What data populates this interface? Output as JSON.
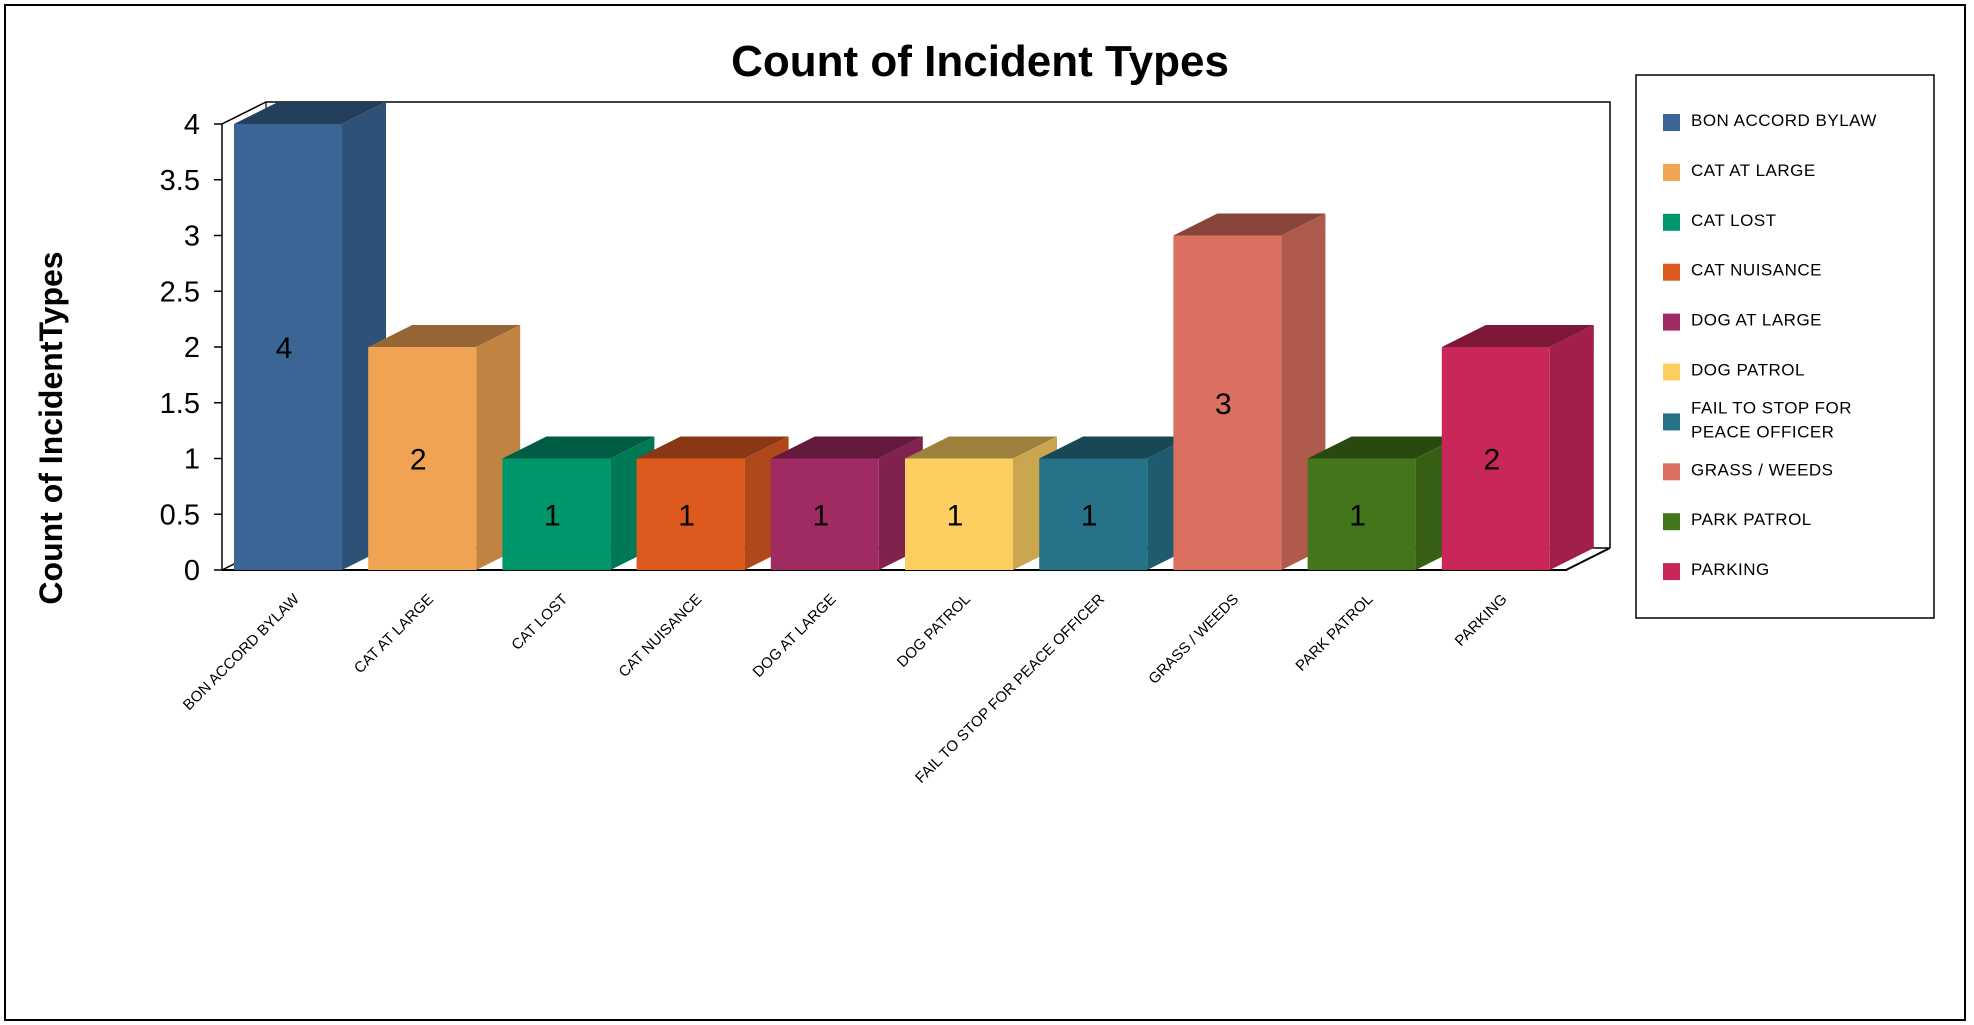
{
  "chart_data": {
    "type": "bar",
    "title": "Count of Incident Types",
    "xlabel": "",
    "ylabel": "Count of IncidentTypes",
    "ylim": [
      0,
      4
    ],
    "yticks": [
      "0",
      "0.5",
      "1",
      "1.5",
      "2",
      "2.5",
      "3",
      "3.5",
      "4"
    ],
    "categories": [
      "BON ACCORD BYLAW",
      "CAT AT LARGE",
      "CAT LOST",
      "CAT NUISANCE",
      "DOG AT LARGE",
      "DOG PATROL",
      "FAIL TO STOP FOR PEACE OFFICER",
      "GRASS / WEEDS",
      "PARK PATROL",
      "PARKING"
    ],
    "values": [
      4,
      2,
      1,
      1,
      1,
      1,
      1,
      3,
      1,
      2
    ],
    "data_labels": [
      "4",
      "2",
      "1",
      "1",
      "1",
      "1",
      "1",
      "3",
      "1",
      "2"
    ],
    "colors": [
      "#3a6595",
      "#f0a453",
      "#00966c",
      "#dd5a1f",
      "#a02a62",
      "#fdcf61",
      "#267289",
      "#dc7060",
      "#43761a",
      "#c9275a"
    ],
    "legend": {
      "position": "right",
      "entries": [
        "BON ACCORD BYLAW",
        "CAT AT LARGE",
        "CAT LOST",
        "CAT NUISANCE",
        "DOG AT LARGE",
        "DOG PATROL",
        "FAIL TO STOP FOR PEACE OFFICER",
        "GRASS / WEEDS",
        "PARK PATROL",
        "PARKING"
      ]
    },
    "grid": false,
    "style": "3d-column"
  }
}
